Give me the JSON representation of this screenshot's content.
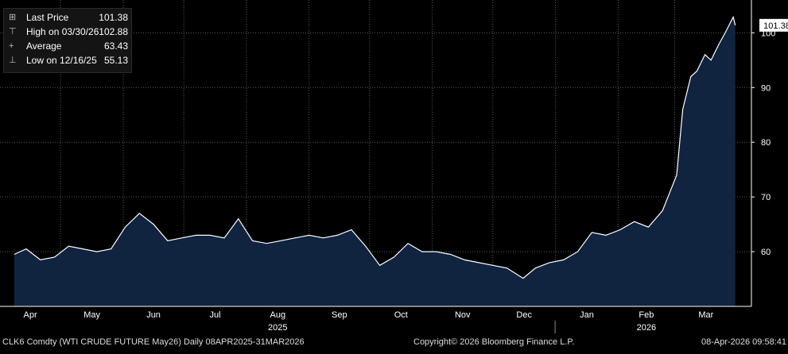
{
  "chart_data": {
    "type": "area",
    "ticker": "CLK6 Comdty",
    "x_months": [
      "Apr",
      "May",
      "Jun",
      "Jul",
      "Aug",
      "Sep",
      "Oct",
      "Nov",
      "Dec",
      "Jan",
      "Feb",
      "Mar"
    ],
    "x_years": [
      "2025",
      "2026"
    ],
    "ylim": [
      50,
      106
    ],
    "yticks": [
      60,
      70,
      80,
      90,
      100
    ],
    "grid": true,
    "last_value": 101.38,
    "legend": {
      "last_label": "Last Price",
      "last_value": "101.38",
      "high_label": "High on 03/30/26",
      "high_value": "102.88",
      "avg_label": "Average",
      "avg_value": "63.43",
      "low_label": "Low on 12/16/25",
      "low_value": "55.13"
    },
    "x": [
      "2025-04-08",
      "2025-04-14",
      "2025-04-21",
      "2025-04-28",
      "2025-05-05",
      "2025-05-12",
      "2025-05-19",
      "2025-05-26",
      "2025-06-02",
      "2025-06-09",
      "2025-06-16",
      "2025-06-23",
      "2025-06-30",
      "2025-07-07",
      "2025-07-14",
      "2025-07-21",
      "2025-07-28",
      "2025-08-04",
      "2025-08-11",
      "2025-08-18",
      "2025-08-25",
      "2025-09-01",
      "2025-09-08",
      "2025-09-15",
      "2025-09-22",
      "2025-09-29",
      "2025-10-06",
      "2025-10-13",
      "2025-10-20",
      "2025-10-27",
      "2025-11-03",
      "2025-11-10",
      "2025-11-17",
      "2025-11-24",
      "2025-12-01",
      "2025-12-08",
      "2025-12-16",
      "2025-12-22",
      "2025-12-29",
      "2026-01-05",
      "2026-01-12",
      "2026-01-19",
      "2026-01-26",
      "2026-02-02",
      "2026-02-09",
      "2026-02-16",
      "2026-02-23",
      "2026-03-02",
      "2026-03-05",
      "2026-03-09",
      "2026-03-12",
      "2026-03-16",
      "2026-03-19",
      "2026-03-23",
      "2026-03-26",
      "2026-03-30",
      "2026-03-31"
    ],
    "values": [
      59.5,
      60.5,
      58.5,
      59.0,
      61.0,
      60.5,
      60.0,
      60.5,
      64.5,
      67.0,
      65.0,
      62.0,
      62.5,
      63.0,
      63.0,
      62.5,
      66.0,
      62.0,
      61.5,
      62.0,
      62.5,
      63.0,
      62.5,
      63.0,
      64.0,
      61.0,
      57.5,
      59.0,
      61.5,
      60.0,
      60.0,
      59.5,
      58.5,
      58.0,
      57.5,
      57.0,
      55.13,
      57.0,
      58.0,
      58.5,
      60.0,
      63.5,
      63.0,
      64.0,
      65.5,
      64.5,
      67.5,
      74.0,
      86.0,
      92.0,
      93.0,
      96.0,
      95.0,
      98.0,
      100.0,
      102.88,
      101.38
    ]
  },
  "footer": {
    "left": "CLK6 Comdty (WTI CRUDE FUTURE  May26) Daily 08APR2025-31MAR2026",
    "center": "Copyright© 2026 Bloomberg Finance L.P.",
    "right": "08-Apr-2026 09:58:41"
  },
  "colors": {
    "background": "#000000",
    "area_fill": "#10233f",
    "line": "#ffffff",
    "grid": "#5a5a5a"
  }
}
